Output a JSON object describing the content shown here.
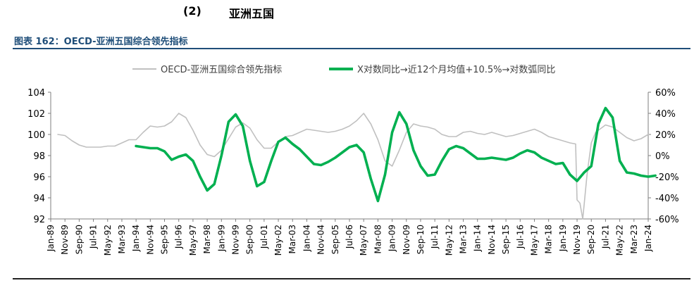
{
  "section": {
    "number": "(2)",
    "title": "亚洲五国"
  },
  "figure_title": "图表 162：OECD-亚洲五国综合领先指标",
  "colors": {
    "title": "#1f4e79",
    "series_gray": "#c0c0c0",
    "series_green": "#00b050",
    "axis": "#7f7f7f"
  },
  "chart_data": {
    "type": "line",
    "legend": "top",
    "grid": false,
    "x_labels": [
      "Jan-89",
      "Nov-89",
      "Sep-90",
      "Jul-91",
      "May-92",
      "Mar-93",
      "Jan-94",
      "Nov-94",
      "Sep-95",
      "Jul-96",
      "May-97",
      "Mar-98",
      "Jan-99",
      "Nov-99",
      "Sep-00",
      "Jul-01",
      "May-02",
      "Mar-03",
      "Jan-04",
      "Nov-04",
      "Sep-05",
      "Jul-06",
      "May-07",
      "Mar-08",
      "Jan-09",
      "Nov-09",
      "Sep-10",
      "Jul-11",
      "May-12",
      "Mar-13",
      "Jan-14",
      "Nov-14",
      "Sep-15",
      "Jul-16",
      "May-17",
      "Mar-18",
      "Jan-19",
      "Nov-19",
      "Sep-20",
      "Jul-21",
      "May-22",
      "Mar-23",
      "Jan-24"
    ],
    "y_left": {
      "min": 92,
      "max": 104,
      "ticks": [
        "92",
        "94",
        "96",
        "98",
        "100",
        "102",
        "104"
      ]
    },
    "y_right": {
      "min": -60,
      "max": 60,
      "ticks": [
        "-60%",
        "-40%",
        "-20%",
        "0%",
        "20%",
        "40%",
        "60%"
      ]
    },
    "series": [
      {
        "name": "OECD-亚洲五国综合领先指标",
        "axis": "left",
        "points": [
          [
            0.5,
            100.0
          ],
          [
            1,
            99.9
          ],
          [
            1.5,
            99.4
          ],
          [
            2,
            99.0
          ],
          [
            2.5,
            98.8
          ],
          [
            3,
            98.8
          ],
          [
            3.5,
            98.8
          ],
          [
            4,
            98.9
          ],
          [
            4.5,
            98.9
          ],
          [
            5,
            99.2
          ],
          [
            5.5,
            99.5
          ],
          [
            6,
            99.5
          ],
          [
            6.5,
            100.2
          ],
          [
            7,
            100.8
          ],
          [
            7.5,
            100.7
          ],
          [
            8,
            100.8
          ],
          [
            8.5,
            101.2
          ],
          [
            9,
            102.0
          ],
          [
            9.5,
            101.6
          ],
          [
            10,
            100.4
          ],
          [
            10.5,
            99.0
          ],
          [
            11,
            98.1
          ],
          [
            11.5,
            97.9
          ],
          [
            12,
            98.5
          ],
          [
            12.5,
            99.6
          ],
          [
            13,
            100.7
          ],
          [
            13.5,
            101.1
          ],
          [
            14,
            100.6
          ],
          [
            14.5,
            99.5
          ],
          [
            15,
            98.7
          ],
          [
            15.5,
            98.7
          ],
          [
            16,
            99.3
          ],
          [
            16.5,
            99.8
          ],
          [
            17,
            99.9
          ],
          [
            17.5,
            100.2
          ],
          [
            18,
            100.5
          ],
          [
            18.5,
            100.4
          ],
          [
            19,
            100.3
          ],
          [
            19.5,
            100.2
          ],
          [
            20,
            100.3
          ],
          [
            20.5,
            100.5
          ],
          [
            21,
            100.8
          ],
          [
            21.5,
            101.3
          ],
          [
            22,
            102.0
          ],
          [
            22.5,
            101.0
          ],
          [
            23,
            99.5
          ],
          [
            23.5,
            97.5
          ],
          [
            24,
            97.0
          ],
          [
            24.5,
            98.5
          ],
          [
            25,
            100.2
          ],
          [
            25.5,
            101.0
          ],
          [
            26,
            100.8
          ],
          [
            26.5,
            100.7
          ],
          [
            27,
            100.5
          ],
          [
            27.5,
            100.0
          ],
          [
            28,
            99.8
          ],
          [
            28.5,
            99.8
          ],
          [
            29,
            100.2
          ],
          [
            29.5,
            100.3
          ],
          [
            30,
            100.1
          ],
          [
            30.5,
            100.0
          ],
          [
            31,
            100.2
          ],
          [
            31.5,
            100.0
          ],
          [
            32,
            99.8
          ],
          [
            32.5,
            99.9
          ],
          [
            33,
            100.1
          ],
          [
            33.5,
            100.3
          ],
          [
            34,
            100.5
          ],
          [
            34.5,
            100.2
          ],
          [
            35,
            99.8
          ],
          [
            35.5,
            99.6
          ],
          [
            36,
            99.4
          ],
          [
            36.5,
            99.2
          ],
          [
            36.9,
            99.1
          ],
          [
            37.0,
            93.8
          ],
          [
            37.2,
            93.5
          ],
          [
            37.4,
            92.0
          ],
          [
            37.7,
            96.2
          ],
          [
            38,
            99.2
          ],
          [
            38.3,
            100.2
          ],
          [
            39,
            100.9
          ],
          [
            39.5,
            100.7
          ],
          [
            40,
            100.2
          ],
          [
            40.5,
            99.7
          ],
          [
            41,
            99.4
          ],
          [
            41.5,
            99.6
          ],
          [
            42,
            100.0
          ]
        ]
      },
      {
        "name": "X对数同比→近12个月均值+10.5%→对数弧同比",
        "axis": "right",
        "points": [
          [
            6,
            9
          ],
          [
            6.5,
            8
          ],
          [
            7,
            7
          ],
          [
            7.5,
            7
          ],
          [
            8,
            4
          ],
          [
            8.5,
            -4
          ],
          [
            9,
            -1
          ],
          [
            9.5,
            1
          ],
          [
            10,
            -5
          ],
          [
            10.5,
            -20
          ],
          [
            11,
            -33
          ],
          [
            11.5,
            -27
          ],
          [
            12,
            0
          ],
          [
            12.5,
            32
          ],
          [
            13,
            39
          ],
          [
            13.5,
            28
          ],
          [
            14,
            -5
          ],
          [
            14.5,
            -29
          ],
          [
            15,
            -25
          ],
          [
            15.5,
            -5
          ],
          [
            16,
            13
          ],
          [
            16.5,
            17
          ],
          [
            17,
            11
          ],
          [
            17.5,
            6
          ],
          [
            18,
            -1
          ],
          [
            18.5,
            -8
          ],
          [
            19,
            -9
          ],
          [
            19.5,
            -6
          ],
          [
            20,
            -2
          ],
          [
            20.5,
            3
          ],
          [
            21,
            8
          ],
          [
            21.5,
            10
          ],
          [
            22,
            3
          ],
          [
            22.5,
            -22
          ],
          [
            23,
            -43
          ],
          [
            23.5,
            -18
          ],
          [
            24,
            22
          ],
          [
            24.5,
            41
          ],
          [
            25,
            30
          ],
          [
            25.5,
            5
          ],
          [
            26,
            -10
          ],
          [
            26.5,
            -19
          ],
          [
            27,
            -18
          ],
          [
            27.5,
            -5
          ],
          [
            28,
            6
          ],
          [
            28.5,
            9
          ],
          [
            29,
            7
          ],
          [
            29.5,
            2
          ],
          [
            30,
            -3
          ],
          [
            30.5,
            -3
          ],
          [
            31,
            -2
          ],
          [
            31.5,
            -3
          ],
          [
            32,
            -4
          ],
          [
            32.5,
            -2
          ],
          [
            33,
            2
          ],
          [
            33.5,
            5
          ],
          [
            34,
            3
          ],
          [
            34.5,
            -2
          ],
          [
            35,
            -5
          ],
          [
            35.5,
            -8
          ],
          [
            36,
            -7
          ],
          [
            36.5,
            -18
          ],
          [
            37,
            -24
          ],
          [
            37.5,
            -16
          ],
          [
            38,
            -10
          ],
          [
            38.5,
            30
          ],
          [
            39,
            45
          ],
          [
            39.5,
            36
          ],
          [
            40,
            -5
          ],
          [
            40.5,
            -16
          ],
          [
            41,
            -17
          ],
          [
            41.5,
            -19
          ],
          [
            42,
            -20
          ],
          [
            42.5,
            -19
          ]
        ]
      }
    ]
  }
}
